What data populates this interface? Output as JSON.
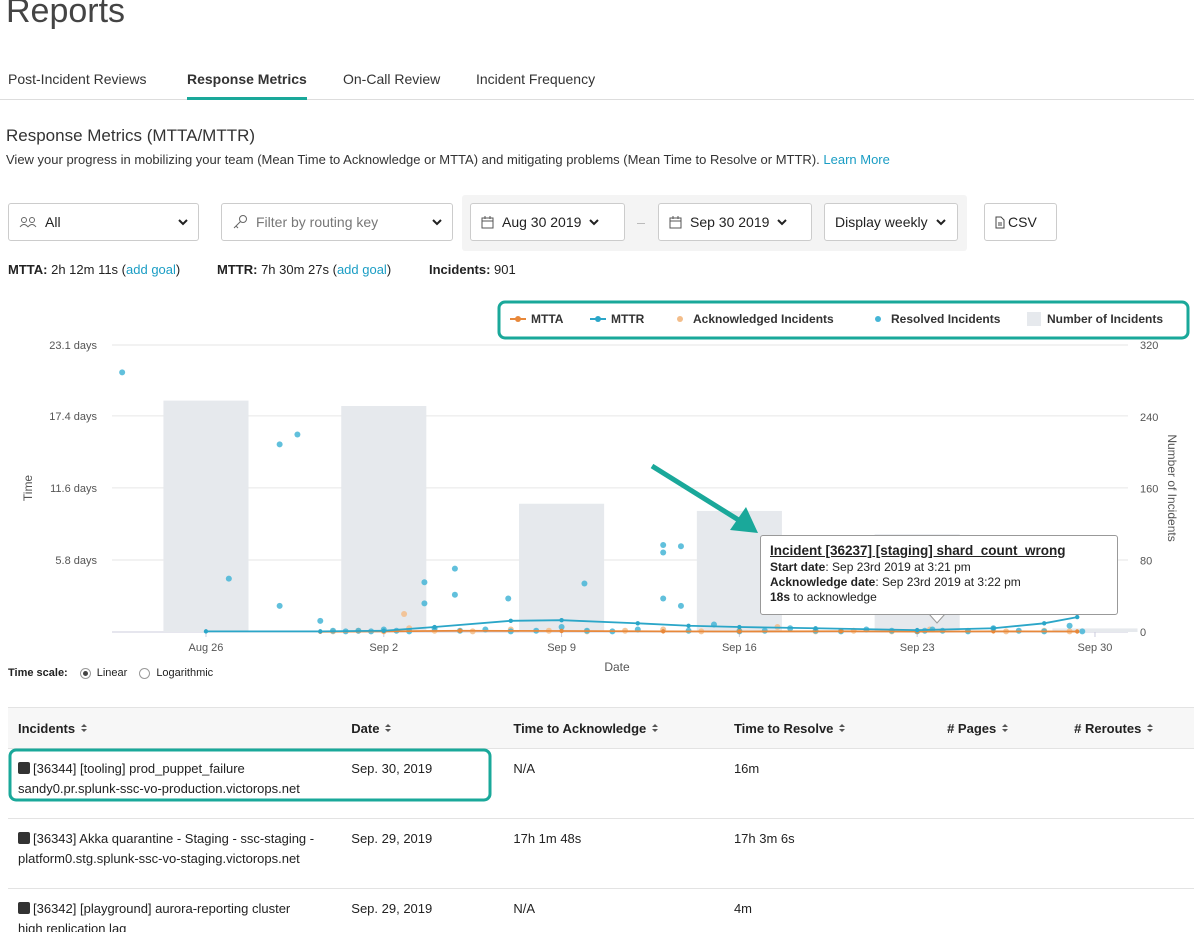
{
  "header": {
    "title": "Reports"
  },
  "tabs": {
    "items": [
      "Post-Incident Reviews",
      "Response Metrics",
      "On-Call Review",
      "Incident Frequency"
    ],
    "active": 1
  },
  "section": {
    "title": "Response Metrics (MTTA/MTTR)",
    "description": "View your progress in mobilizing your team (Mean Time to Acknowledge or MTTA) and mitigating problems (Mean Time to Resolve or MTTR).",
    "link": "Learn More"
  },
  "filters": {
    "team": "All",
    "routing_key": "Filter by routing key",
    "start_date": "Aug 30 2019",
    "end_date": "Sep 30 2019",
    "display": "Display weekly",
    "export": "CSV"
  },
  "summary": [
    {
      "label": "MTTA:",
      "value": "2h 12m 11s (",
      "link": "add goal",
      "after": ")"
    },
    {
      "label": "MTTR:",
      "value": "7h 30m 27s (",
      "link": "add goal",
      "after": ")"
    },
    {
      "label": "Incidents:",
      "value": "901"
    }
  ],
  "chart_data": {
    "type": "combo",
    "x_label": "Date",
    "y_label": "Time",
    "y2_label": "Number of Incidents",
    "xlim": [
      -3.7,
      36.3
    ],
    "xticks": [
      {
        "value": 0,
        "label": "Aug 26"
      },
      {
        "value": 7,
        "label": "Sep 2"
      },
      {
        "value": 14,
        "label": "Sep 9"
      },
      {
        "value": 21,
        "label": "Sep 16"
      },
      {
        "value": 28,
        "label": "Sep 23"
      },
      {
        "value": 35,
        "label": "Sep 30"
      }
    ],
    "ylim": [
      0,
      23.1
    ],
    "yticks": [
      {
        "value": 5.8,
        "label": "5.8 days"
      },
      {
        "value": 11.6,
        "label": "11.6 days"
      },
      {
        "value": 17.4,
        "label": "17.4 days"
      },
      {
        "value": 23.1,
        "label": "23.1 days"
      }
    ],
    "y2lim": [
      0,
      320
    ],
    "y2ticks": [
      0,
      80,
      160,
      240,
      320
    ],
    "grid": true,
    "log_scale": false,
    "legend": "top-right",
    "series": [
      {
        "name": "MTTA",
        "type": "line",
        "color": "#e8883a",
        "x": [
          4.5,
          7,
          10,
          14,
          18,
          21,
          25,
          28,
          31,
          34.3
        ],
        "values": [
          0.02,
          0.05,
          0.1,
          0.08,
          0.05,
          0.04,
          0.06,
          0.03,
          0.05,
          0.04
        ]
      },
      {
        "name": "MTTR",
        "type": "line",
        "color": "#2ba6c8",
        "x": [
          0,
          4.5,
          7,
          9,
          12,
          14,
          17,
          19,
          21,
          24,
          28,
          31,
          33,
          34.3
        ],
        "values": [
          0.05,
          0.05,
          0.1,
          0.4,
          0.9,
          0.95,
          0.7,
          0.5,
          0.4,
          0.3,
          0.15,
          0.3,
          0.7,
          1.2
        ]
      },
      {
        "name": "Acknowledged Incidents",
        "type": "scatter",
        "color": "#f3bd8a",
        "x": [
          7.8,
          5.0,
          6.0,
          7.0,
          8.0,
          9.0,
          10.5,
          12.0,
          13.5,
          15.0,
          16.5,
          18.0,
          19.5,
          21.0,
          22.5,
          24.0,
          25.5,
          27.0,
          28.5,
          30.0,
          31.5,
          33.0,
          34.0
        ],
        "values": [
          1.45,
          0.05,
          0.1,
          0.05,
          0.3,
          0.1,
          0.05,
          0.2,
          0.1,
          0.05,
          0.1,
          0.2,
          0.05,
          0.1,
          0.4,
          0.05,
          0.1,
          0.05,
          0.2,
          0.1,
          0.05,
          0.1,
          0.05
        ]
      },
      {
        "name": "Resolved Incidents",
        "type": "scatter",
        "color": "#45b5d6",
        "x": [
          -3.3,
          0.9,
          2.9,
          3.6,
          2.9,
          8.6,
          9.8,
          8.6,
          9.8,
          11.9,
          14.9,
          18.0,
          18.0,
          18.7,
          18.0,
          18.7,
          4.5,
          5.0,
          5.5,
          6.0,
          6.5,
          7.0,
          7.5,
          8.0,
          9.0,
          10,
          11,
          12,
          13,
          14,
          15,
          16,
          17,
          19,
          20,
          21,
          22,
          23,
          24,
          25,
          26,
          27,
          28,
          28.3,
          28.6,
          29,
          30,
          31,
          32,
          33,
          34,
          34.5
        ],
        "values": [
          20.9,
          4.3,
          15.1,
          15.9,
          2.1,
          4.0,
          5.1,
          2.3,
          3.0,
          2.7,
          3.9,
          7.0,
          6.4,
          6.9,
          2.7,
          2.1,
          0.9,
          0.1,
          0.05,
          0.1,
          0.05,
          0.2,
          0.1,
          0.05,
          0.3,
          0.1,
          0.2,
          0.05,
          0.1,
          0.4,
          0.1,
          0.05,
          0.2,
          0.1,
          0.6,
          0.05,
          0.1,
          0.3,
          0.1,
          0.05,
          0.2,
          0.1,
          0.05,
          0.1,
          0.2,
          0.1,
          0.05,
          0.3,
          0.1,
          0.05,
          0.5,
          0.05
        ]
      },
      {
        "name": "Number of Incidents",
        "type": "bar",
        "axis": "y2",
        "color": "#e6e9ed",
        "x": [
          0,
          7,
          14,
          21,
          28,
          35
        ],
        "values": [
          258,
          252,
          143,
          135,
          109,
          4
        ]
      }
    ],
    "tooltip": {
      "title": "Incident [36237] [staging] shard_count_wrong",
      "lines": [
        {
          "label": "Start date",
          "value": ": Sep 23rd 2019 at 3:21 pm"
        },
        {
          "label": "Acknowledge date",
          "value": ": Sep 23rd 2019 at 3:22 pm"
        },
        {
          "label": "18s",
          "value": " to acknowledge"
        }
      ]
    }
  },
  "time_scale": {
    "label": "Time scale:",
    "options": [
      "Linear",
      "Logarithmic"
    ],
    "selected": 0
  },
  "table": {
    "headers": [
      "Incidents",
      "Date",
      "Time to Acknowledge",
      "Time to Resolve",
      "# Pages",
      "# Reroutes"
    ],
    "rows": [
      {
        "incident": [
          "[36344] [tooling] prod_puppet_failure",
          "sandy0.pr.splunk-ssc-vo-production.victorops.net"
        ],
        "date": "Sep. 30, 2019",
        "tta": "N/A",
        "ttr": "16m"
      },
      {
        "incident": [
          "[36343] Akka quarantine - Staging - ssc-staging -",
          "platform0.stg.splunk-ssc-vo-staging.victorops.net"
        ],
        "date": "Sep. 29, 2019",
        "tta": "17h 1m 48s",
        "ttr": "17h 3m 6s"
      },
      {
        "incident": [
          "[36342] [playground] aurora-reporting cluster",
          "high replication lag"
        ],
        "date": "Sep. 29, 2019",
        "tta": "N/A",
        "ttr": "4m"
      }
    ]
  }
}
